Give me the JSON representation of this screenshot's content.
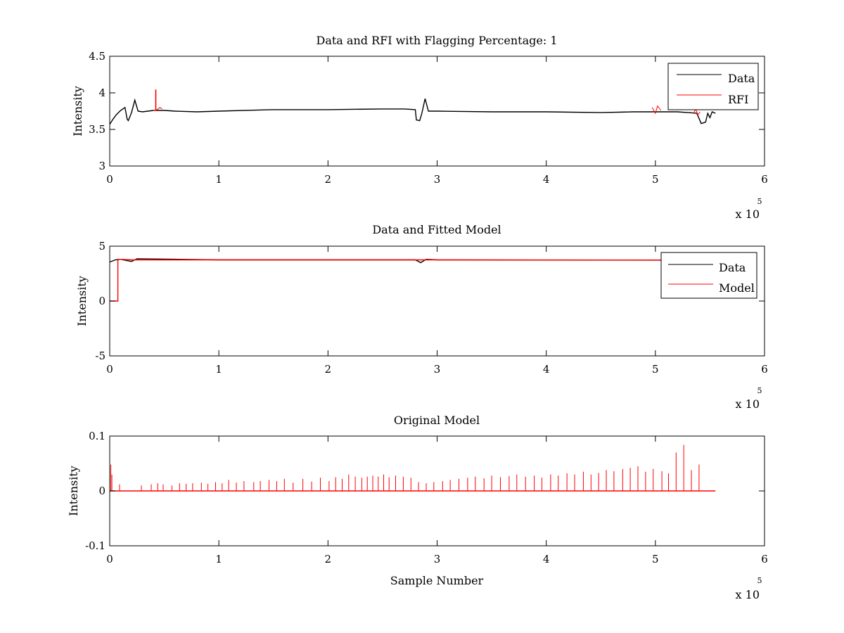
{
  "chart_data": [
    {
      "type": "line",
      "title": "Data and RFI with Flagging Percentage: 1",
      "xlabel": "",
      "ylabel": "Intensity",
      "xlim": [
        0,
        600000
      ],
      "ylim": [
        3,
        4.5
      ],
      "xticks": [
        0,
        100000,
        200000,
        300000,
        400000,
        500000,
        600000
      ],
      "xtick_labels": [
        "0",
        "1",
        "2",
        "3",
        "4",
        "5",
        "6"
      ],
      "yticks": [
        3,
        3.5,
        4,
        4.5
      ],
      "ytick_labels": [
        "3",
        "3.5",
        "4",
        "4.5"
      ],
      "x_multiplier": "x 10",
      "x_multiplier_exp": "5",
      "legend_position": "top-right",
      "grid": false,
      "series": [
        {
          "name": "Data",
          "color": "#000000",
          "x": [
            0,
            3000,
            6000,
            10000,
            14000,
            16000,
            17000,
            20000,
            23000,
            26000,
            30000,
            40000,
            50000,
            60000,
            80000,
            100000,
            150000,
            200000,
            250000,
            270000,
            280000,
            281000,
            284000,
            286000,
            289000,
            292000,
            300000,
            350000,
            400000,
            450000,
            480000,
            500000,
            520000,
            530000,
            538000,
            542000,
            546000,
            548000,
            550000,
            552000,
            555000
          ],
          "y": [
            3.57,
            3.64,
            3.7,
            3.76,
            3.8,
            3.64,
            3.62,
            3.73,
            3.9,
            3.75,
            3.74,
            3.76,
            3.76,
            3.75,
            3.74,
            3.75,
            3.77,
            3.77,
            3.78,
            3.78,
            3.77,
            3.63,
            3.62,
            3.72,
            3.92,
            3.75,
            3.75,
            3.74,
            3.74,
            3.73,
            3.74,
            3.74,
            3.74,
            3.73,
            3.72,
            3.58,
            3.6,
            3.72,
            3.66,
            3.74,
            3.72
          ]
        },
        {
          "name": "RFI",
          "color": "#ff0000",
          "segments": [
            {
              "x": [
                40000,
                42000,
                42000,
                42400,
                42400,
                46000,
                48000
              ],
              "y": [
                3.76,
                3.76,
                4.04,
                4.04,
                3.76,
                3.8,
                3.78
              ]
            },
            {
              "x": [
                497000,
                500000,
                502000,
                505000
              ],
              "y": [
                3.8,
                3.72,
                3.82,
                3.76
              ]
            },
            {
              "x": [
                535000,
                537000,
                539000,
                541000
              ],
              "y": [
                3.72,
                3.78,
                3.7,
                3.74
              ]
            }
          ]
        }
      ]
    },
    {
      "type": "line",
      "title": "Data and Fitted Model",
      "xlabel": "",
      "ylabel": "Intensity",
      "xlim": [
        0,
        600000
      ],
      "ylim": [
        -5,
        5
      ],
      "xticks": [
        0,
        100000,
        200000,
        300000,
        400000,
        500000,
        600000
      ],
      "xtick_labels": [
        "0",
        "1",
        "2",
        "3",
        "4",
        "5",
        "6"
      ],
      "yticks": [
        -5,
        0,
        5
      ],
      "ytick_labels": [
        "-5",
        "0",
        "5"
      ],
      "x_multiplier": "x 10",
      "x_multiplier_exp": "5",
      "legend_position": "top-right",
      "grid": false,
      "series": [
        {
          "name": "Data",
          "color": "#000000",
          "x": [
            0,
            5000,
            10000,
            20000,
            25000,
            100000,
            280000,
            285000,
            290000,
            300000,
            555000
          ],
          "y": [
            3.55,
            3.75,
            3.8,
            3.6,
            3.85,
            3.75,
            3.75,
            3.5,
            3.8,
            3.75,
            3.72
          ]
        },
        {
          "name": "Model",
          "color": "#ff0000",
          "x": [
            0,
            7500,
            7500,
            10000,
            20000,
            100000,
            300000,
            555000
          ],
          "y": [
            0,
            0,
            3.8,
            3.8,
            3.75,
            3.75,
            3.75,
            3.73
          ]
        }
      ]
    },
    {
      "type": "line",
      "title": "Original Model",
      "xlabel": "Sample Number",
      "ylabel": "Intensity",
      "xlim": [
        0,
        600000
      ],
      "ylim": [
        -0.1,
        0.1
      ],
      "xticks": [
        0,
        100000,
        200000,
        300000,
        400000,
        500000,
        600000
      ],
      "xtick_labels": [
        "0",
        "1",
        "2",
        "3",
        "4",
        "5",
        "6"
      ],
      "yticks": [
        -0.1,
        0,
        0.1
      ],
      "ytick_labels": [
        "-0.1",
        "0",
        "0.1"
      ],
      "x_multiplier": "x 10",
      "x_multiplier_exp": "5",
      "grid": false,
      "series": [
        {
          "color": "#ff0000",
          "baseline": 0,
          "x_end": 555000,
          "spikes_x": [
            1000,
            2000,
            9000,
            29000,
            38000,
            44000,
            49000,
            57000,
            64000,
            70000,
            76000,
            84000,
            90000,
            97000,
            103000,
            109000,
            116000,
            123000,
            132000,
            138000,
            146000,
            153000,
            160000,
            168000,
            177000,
            185000,
            193000,
            201000,
            207000,
            213000,
            219000,
            225000,
            231000,
            236000,
            241000,
            246000,
            251000,
            256000,
            262000,
            269000,
            276000,
            283000,
            290000,
            297000,
            305000,
            312000,
            320000,
            328000,
            335000,
            343000,
            350000,
            358000,
            366000,
            373000,
            381000,
            389000,
            396000,
            404000,
            411000,
            419000,
            426000,
            434000,
            441000,
            448000,
            455000,
            462000,
            470000,
            477000,
            484000,
            491000,
            498000,
            506000,
            512000,
            519000,
            526000,
            533000,
            540000
          ],
          "spikes_y": [
            0.048,
            0.03,
            0.012,
            0.01,
            0.012,
            0.014,
            0.012,
            0.01,
            0.014,
            0.013,
            0.014,
            0.015,
            0.013,
            0.016,
            0.014,
            0.02,
            0.015,
            0.018,
            0.016,
            0.018,
            0.02,
            0.018,
            0.022,
            0.015,
            0.022,
            0.017,
            0.024,
            0.018,
            0.025,
            0.022,
            0.03,
            0.026,
            0.024,
            0.026,
            0.028,
            0.026,
            0.03,
            0.025,
            0.028,
            0.026,
            0.024,
            0.016,
            0.014,
            0.016,
            0.018,
            0.02,
            0.022,
            0.024,
            0.026,
            0.023,
            0.028,
            0.025,
            0.027,
            0.03,
            0.026,
            0.028,
            0.024,
            0.03,
            0.028,
            0.032,
            0.03,
            0.035,
            0.03,
            0.033,
            0.038,
            0.036,
            0.04,
            0.042,
            0.045,
            0.035,
            0.04,
            0.036,
            0.032,
            0.07,
            0.084,
            0.038,
            0.048
          ]
        }
      ]
    }
  ]
}
